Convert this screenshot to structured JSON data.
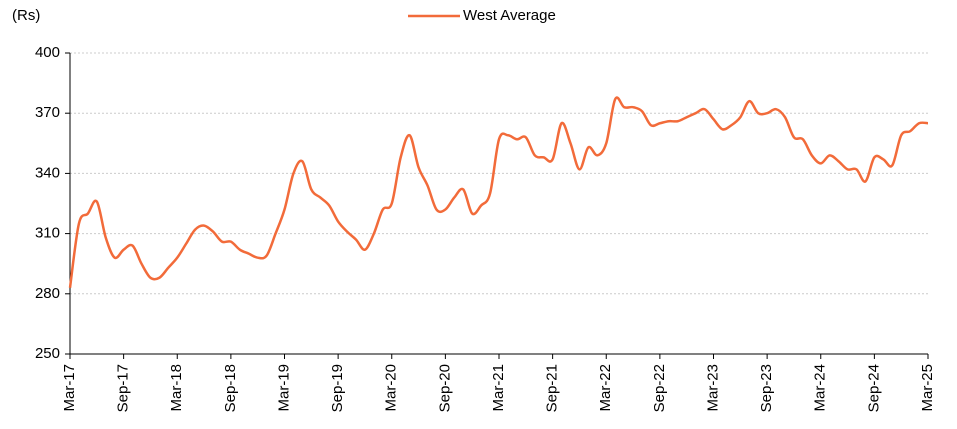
{
  "chart_data": {
    "type": "line",
    "y_label": "(Rs)",
    "categories": [
      "Mar-17",
      null,
      null,
      null,
      null,
      null,
      "Sep-17",
      null,
      null,
      null,
      null,
      null,
      "Mar-18",
      null,
      null,
      null,
      null,
      null,
      "Sep-18",
      null,
      null,
      null,
      null,
      null,
      "Mar-19",
      null,
      null,
      null,
      null,
      null,
      "Sep-19",
      null,
      null,
      null,
      null,
      null,
      "Mar-20",
      null,
      null,
      null,
      null,
      null,
      "Sep-20",
      null,
      null,
      null,
      null,
      null,
      "Mar-21",
      null,
      null,
      null,
      null,
      null,
      "Sep-21",
      null,
      null,
      null,
      null,
      null,
      "Mar-22",
      null,
      null,
      null,
      null,
      null,
      "Sep-22",
      null,
      null,
      null,
      null,
      null,
      "Mar-23",
      null,
      null,
      null,
      null,
      null,
      "Sep-23",
      null,
      null,
      null,
      null,
      null,
      "Mar-24",
      null,
      null,
      null,
      null,
      null,
      "Sep-24",
      null,
      null,
      null,
      null,
      null,
      "Mar-25"
    ],
    "series": [
      {
        "name": "West Average",
        "color": "#f26b3a",
        "values": [
          283,
          315,
          320,
          326,
          308,
          298,
          302,
          304,
          295,
          288,
          288,
          293,
          298,
          305,
          312,
          314,
          311,
          306,
          306,
          302,
          300,
          298,
          299,
          310,
          322,
          340,
          346,
          332,
          328,
          324,
          316,
          311,
          307,
          302,
          310,
          322,
          325,
          348,
          359,
          343,
          334,
          322,
          322,
          328,
          332,
          320,
          324,
          330,
          357,
          359,
          357,
          358,
          349,
          348,
          347,
          365,
          355,
          342,
          353,
          349,
          355,
          377,
          373,
          373,
          371,
          364,
          365,
          366,
          366,
          368,
          370,
          372,
          367,
          362,
          364,
          368,
          376,
          370,
          370,
          372,
          368,
          358,
          357,
          349,
          345,
          349,
          346,
          342,
          342,
          336,
          348,
          347,
          344,
          359,
          361,
          365,
          365
        ]
      }
    ],
    "ylim": [
      250,
      400
    ],
    "yticks": [
      250,
      280,
      310,
      340,
      370,
      400
    ],
    "grid": true,
    "legend": "top"
  }
}
